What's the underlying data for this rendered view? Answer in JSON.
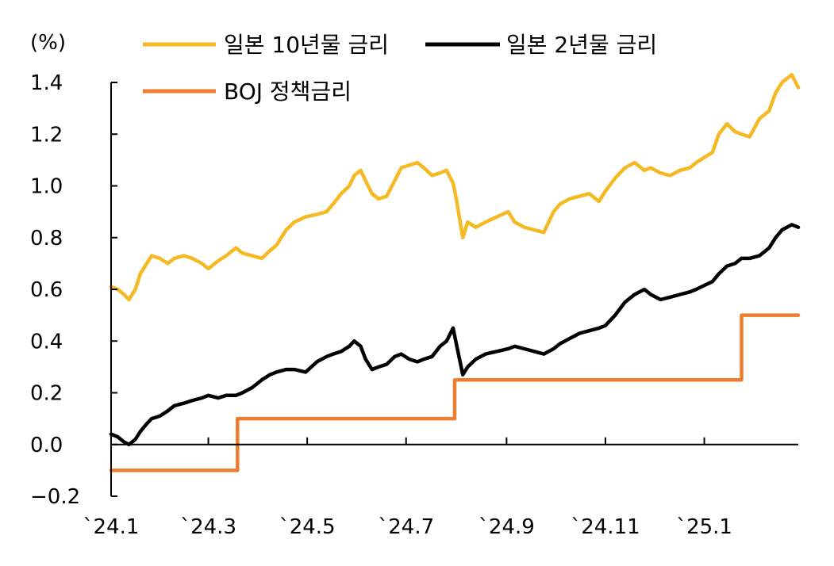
{
  "chart_data": {
    "type": "line",
    "unit_label": "(%)",
    "title": "",
    "xlabel": "",
    "ylabel": "",
    "ylim": [
      -0.2,
      1.4
    ],
    "yticks": [
      -0.2,
      0.0,
      0.2,
      0.4,
      0.6,
      0.8,
      1.0,
      1.2,
      1.4
    ],
    "ytick_labels": [
      "−0.2",
      "0.0",
      "0.2",
      "0.4",
      "0.6",
      "0.8",
      "1.0",
      "1.2",
      "1.4"
    ],
    "xlim": [
      "2024-01-01",
      "2025-02-28"
    ],
    "xticks": [
      "2024-01-01",
      "2024-03-01",
      "2024-05-01",
      "2024-07-01",
      "2024-09-01",
      "2024-11-01",
      "2025-01-01"
    ],
    "xtick_labels": [
      "`24.1",
      "`24.3",
      "`24.5",
      "`24.7",
      "`24.9",
      "`24.11",
      "`25.1"
    ],
    "grid": false,
    "legend_position": "top",
    "series": [
      {
        "name": "일본 10년물 금리",
        "color": "#F5B923",
        "x": [
          "2024-01-01",
          "2024-01-05",
          "2024-01-09",
          "2024-01-12",
          "2024-01-16",
          "2024-01-19",
          "2024-01-23",
          "2024-01-26",
          "2024-01-31",
          "2024-02-05",
          "2024-02-09",
          "2024-02-15",
          "2024-02-20",
          "2024-02-26",
          "2024-03-01",
          "2024-03-07",
          "2024-03-12",
          "2024-03-18",
          "2024-03-22",
          "2024-03-28",
          "2024-04-03",
          "2024-04-08",
          "2024-04-12",
          "2024-04-18",
          "2024-04-23",
          "2024-04-30",
          "2024-05-07",
          "2024-05-13",
          "2024-05-17",
          "2024-05-22",
          "2024-05-27",
          "2024-05-30",
          "2024-06-03",
          "2024-06-06",
          "2024-06-10",
          "2024-06-14",
          "2024-06-19",
          "2024-06-24",
          "2024-06-28",
          "2024-07-03",
          "2024-07-08",
          "2024-07-12",
          "2024-07-17",
          "2024-07-22",
          "2024-07-26",
          "2024-07-30",
          "2024-08-01",
          "2024-08-05",
          "2024-08-08",
          "2024-08-13",
          "2024-08-19",
          "2024-08-26",
          "2024-09-02",
          "2024-09-06",
          "2024-09-12",
          "2024-09-18",
          "2024-09-24",
          "2024-09-30",
          "2024-10-04",
          "2024-10-10",
          "2024-10-16",
          "2024-10-22",
          "2024-10-28",
          "2024-11-01",
          "2024-11-07",
          "2024-11-13",
          "2024-11-19",
          "2024-11-25",
          "2024-11-29",
          "2024-12-05",
          "2024-12-11",
          "2024-12-17",
          "2024-12-23",
          "2024-12-27",
          "2025-01-06",
          "2025-01-10",
          "2025-01-15",
          "2025-01-20",
          "2025-01-24",
          "2025-01-29",
          "2025-02-04",
          "2025-02-10",
          "2025-02-14",
          "2025-02-18",
          "2025-02-24",
          "2025-02-28"
        ],
        "values": [
          0.61,
          0.6,
          0.58,
          0.56,
          0.6,
          0.66,
          0.7,
          0.73,
          0.72,
          0.7,
          0.72,
          0.73,
          0.72,
          0.7,
          0.68,
          0.71,
          0.73,
          0.76,
          0.74,
          0.73,
          0.72,
          0.75,
          0.77,
          0.83,
          0.86,
          0.88,
          0.89,
          0.9,
          0.93,
          0.97,
          1.0,
          1.04,
          1.06,
          1.02,
          0.97,
          0.95,
          0.96,
          1.02,
          1.07,
          1.08,
          1.09,
          1.07,
          1.04,
          1.05,
          1.06,
          1.01,
          0.95,
          0.8,
          0.86,
          0.84,
          0.86,
          0.88,
          0.9,
          0.86,
          0.84,
          0.83,
          0.82,
          0.9,
          0.93,
          0.95,
          0.96,
          0.97,
          0.94,
          0.98,
          1.03,
          1.07,
          1.09,
          1.06,
          1.07,
          1.05,
          1.04,
          1.06,
          1.07,
          1.09,
          1.13,
          1.2,
          1.24,
          1.21,
          1.2,
          1.19,
          1.26,
          1.29,
          1.36,
          1.4,
          1.43,
          1.38
        ]
      },
      {
        "name": "일본 2년물 금리",
        "color": "#000000",
        "x": [
          "2024-01-01",
          "2024-01-05",
          "2024-01-09",
          "2024-01-12",
          "2024-01-16",
          "2024-01-19",
          "2024-01-23",
          "2024-01-26",
          "2024-01-31",
          "2024-02-05",
          "2024-02-09",
          "2024-02-15",
          "2024-02-20",
          "2024-02-26",
          "2024-03-01",
          "2024-03-07",
          "2024-03-12",
          "2024-03-18",
          "2024-03-22",
          "2024-03-28",
          "2024-04-03",
          "2024-04-08",
          "2024-04-12",
          "2024-04-18",
          "2024-04-23",
          "2024-04-30",
          "2024-05-07",
          "2024-05-13",
          "2024-05-17",
          "2024-05-22",
          "2024-05-27",
          "2024-05-30",
          "2024-06-03",
          "2024-06-06",
          "2024-06-10",
          "2024-06-14",
          "2024-06-19",
          "2024-06-24",
          "2024-06-28",
          "2024-07-03",
          "2024-07-08",
          "2024-07-12",
          "2024-07-17",
          "2024-07-22",
          "2024-07-26",
          "2024-07-30",
          "2024-08-01",
          "2024-08-05",
          "2024-08-08",
          "2024-08-13",
          "2024-08-19",
          "2024-08-26",
          "2024-09-02",
          "2024-09-06",
          "2024-09-12",
          "2024-09-18",
          "2024-09-24",
          "2024-09-30",
          "2024-10-04",
          "2024-10-10",
          "2024-10-16",
          "2024-10-22",
          "2024-10-28",
          "2024-11-01",
          "2024-11-07",
          "2024-11-13",
          "2024-11-19",
          "2024-11-25",
          "2024-11-29",
          "2024-12-05",
          "2024-12-11",
          "2024-12-17",
          "2024-12-23",
          "2024-12-27",
          "2025-01-06",
          "2025-01-10",
          "2025-01-15",
          "2025-01-20",
          "2025-01-24",
          "2025-01-29",
          "2025-02-04",
          "2025-02-10",
          "2025-02-14",
          "2025-02-18",
          "2025-02-24",
          "2025-02-28"
        ],
        "values": [
          0.04,
          0.03,
          0.01,
          0.0,
          0.02,
          0.05,
          0.08,
          0.1,
          0.11,
          0.13,
          0.15,
          0.16,
          0.17,
          0.18,
          0.19,
          0.18,
          0.19,
          0.19,
          0.2,
          0.22,
          0.25,
          0.27,
          0.28,
          0.29,
          0.29,
          0.28,
          0.32,
          0.34,
          0.35,
          0.36,
          0.38,
          0.4,
          0.38,
          0.33,
          0.29,
          0.3,
          0.31,
          0.34,
          0.35,
          0.33,
          0.32,
          0.33,
          0.34,
          0.38,
          0.4,
          0.45,
          0.39,
          0.27,
          0.3,
          0.33,
          0.35,
          0.36,
          0.37,
          0.38,
          0.37,
          0.36,
          0.35,
          0.37,
          0.39,
          0.41,
          0.43,
          0.44,
          0.45,
          0.46,
          0.5,
          0.55,
          0.58,
          0.6,
          0.58,
          0.56,
          0.57,
          0.58,
          0.59,
          0.6,
          0.63,
          0.66,
          0.69,
          0.7,
          0.72,
          0.72,
          0.73,
          0.76,
          0.8,
          0.83,
          0.85,
          0.84
        ]
      },
      {
        "name": "BOJ 정책금리",
        "color": "#ED7D31",
        "step": true,
        "x": [
          "2024-01-01",
          "2024-03-19",
          "2024-07-31",
          "2025-01-24",
          "2025-02-28"
        ],
        "values": [
          -0.1,
          0.1,
          0.25,
          0.5,
          0.5
        ]
      }
    ]
  }
}
